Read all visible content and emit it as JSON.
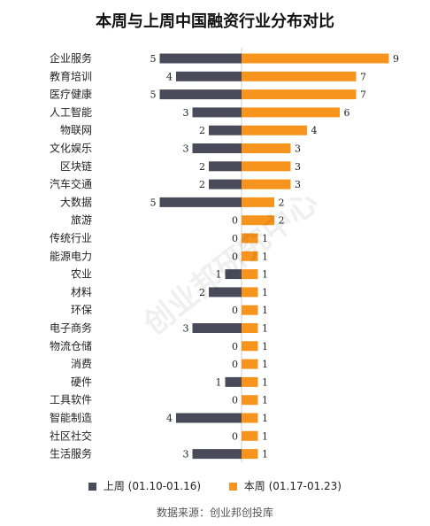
{
  "chart_data": {
    "type": "bar",
    "title": "本周与上周中国融资行业分布对比",
    "categories": [
      "企业服务",
      "教育培训",
      "医疗健康",
      "人工智能",
      "物联网",
      "文化娱乐",
      "区块链",
      "汽车交通",
      "大数据",
      "旅游",
      "传统行业",
      "能源电力",
      "农业",
      "材料",
      "环保",
      "电子商务",
      "物流仓储",
      "消费",
      "硬件",
      "工具软件",
      "智能制造",
      "社区社交",
      "生活服务"
    ],
    "series": [
      {
        "name": "上周",
        "period": "(01.10-01.16)",
        "color": "#4a4a5a",
        "values": [
          5,
          4,
          5,
          3,
          2,
          3,
          2,
          2,
          5,
          0,
          0,
          0,
          1,
          2,
          0,
          3,
          0,
          0,
          1,
          0,
          4,
          0,
          3
        ]
      },
      {
        "name": "本周",
        "period": "(01.17-01.23)",
        "color": "#f7941d",
        "values": [
          9,
          7,
          7,
          6,
          4,
          3,
          3,
          3,
          2,
          2,
          1,
          1,
          1,
          1,
          1,
          1,
          1,
          1,
          1,
          1,
          1,
          1,
          1
        ]
      }
    ],
    "layout": "diverging horizontal bars (上周 left, 本周 right)",
    "legend_position": "bottom"
  },
  "source": "数据来源：创业邦创投库",
  "watermark": "创业邦研究中心"
}
